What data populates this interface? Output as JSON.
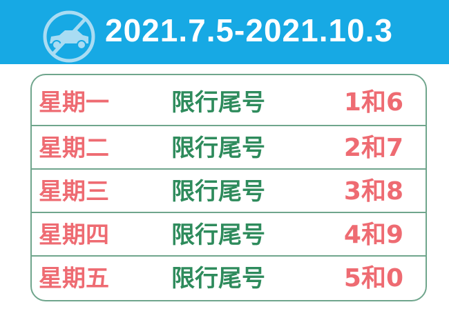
{
  "header": {
    "title": "2021.7.5-2021.10.3",
    "icon": "no-car-icon",
    "bg_color": "#17a9e4"
  },
  "colors": {
    "day": "#ee6b72",
    "label": "#2e8b5c",
    "numbers": "#ee6b72",
    "border": "#6fa58c"
  },
  "rows": [
    {
      "day": "星期一",
      "label": "限行尾号",
      "numbers": "1和6"
    },
    {
      "day": "星期二",
      "label": "限行尾号",
      "numbers": "2和7"
    },
    {
      "day": "星期三",
      "label": "限行尾号",
      "numbers": "3和8"
    },
    {
      "day": "星期四",
      "label": "限行尾号",
      "numbers": "4和9"
    },
    {
      "day": "星期五",
      "label": "限行尾号",
      "numbers": "5和0"
    }
  ]
}
